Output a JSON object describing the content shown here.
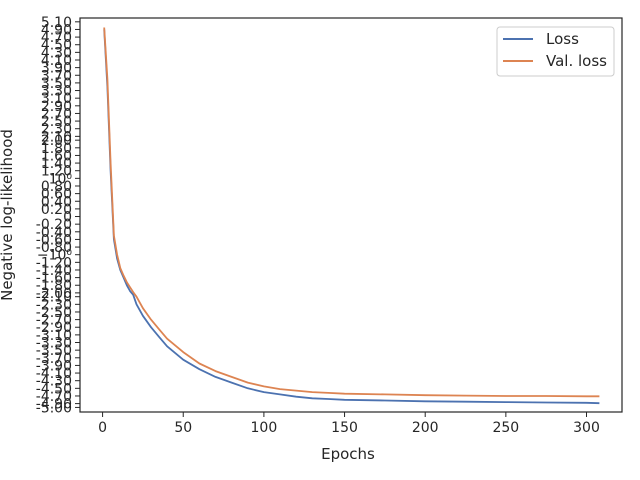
{
  "chart_data": {
    "type": "line",
    "title": "",
    "xlabel": "Epochs",
    "ylabel": "Negative log-likelihood",
    "xlim": [
      -14,
      322
    ],
    "xticks": [
      0,
      50,
      100,
      150,
      200,
      250,
      300
    ],
    "ylim": [
      -5.12,
      5.2
    ],
    "yscale": "symlog",
    "yticks": [
      {
        "v": 5.1,
        "label": "5.10"
      },
      {
        "v": 4.9,
        "label": "4.90"
      },
      {
        "v": 4.7,
        "label": "4.70"
      },
      {
        "v": 4.5,
        "label": "4.50"
      },
      {
        "v": 4.3,
        "label": "4.30"
      },
      {
        "v": 4.1,
        "label": "4.10"
      },
      {
        "v": 3.9,
        "label": "3.90"
      },
      {
        "v": 3.7,
        "label": "3.70"
      },
      {
        "v": 3.5,
        "label": "3.50"
      },
      {
        "v": 3.3,
        "label": "3.30"
      },
      {
        "v": 3.1,
        "label": "3.10"
      },
      {
        "v": 2.9,
        "label": "2.90"
      },
      {
        "v": 2.7,
        "label": "2.70"
      },
      {
        "v": 2.5,
        "label": "2.50"
      },
      {
        "v": 2.3,
        "label": "2.30"
      },
      {
        "v": 2.1,
        "label": "2.10"
      },
      {
        "v": 2.0,
        "label": "2.00"
      },
      {
        "v": 1.8,
        "label": "1.80"
      },
      {
        "v": 1.6,
        "label": "1.60"
      },
      {
        "v": 1.4,
        "label": "1.40"
      },
      {
        "v": 1.2,
        "label": "1.20"
      },
      {
        "v": 1.0,
        "label": "10⁰"
      },
      {
        "v": 0.8,
        "label": "0.80"
      },
      {
        "v": 0.6,
        "label": "0.60"
      },
      {
        "v": 0.4,
        "label": "0.40"
      },
      {
        "v": 0.2,
        "label": "0.20"
      },
      {
        "v": 0,
        "label": "0"
      },
      {
        "v": -0.2,
        "label": "-0.20"
      },
      {
        "v": -0.4,
        "label": "-0.40"
      },
      {
        "v": -0.6,
        "label": "-0.60"
      },
      {
        "v": -0.8,
        "label": "-0.80"
      },
      {
        "v": -1.0,
        "label": "−10⁰"
      },
      {
        "v": -1.2,
        "label": "-1.20"
      },
      {
        "v": -1.4,
        "label": "-1.40"
      },
      {
        "v": -1.6,
        "label": "-1.60"
      },
      {
        "v": -1.8,
        "label": "-1.80"
      },
      {
        "v": -2.0,
        "label": "-2.00"
      },
      {
        "v": -2.1,
        "label": "-2.10"
      },
      {
        "v": -2.3,
        "label": "-2.30"
      },
      {
        "v": -2.5,
        "label": "-2.50"
      },
      {
        "v": -2.7,
        "label": "-2.70"
      },
      {
        "v": -2.9,
        "label": "-2.90"
      },
      {
        "v": -3.1,
        "label": "-3.10"
      },
      {
        "v": -3.3,
        "label": "-3.30"
      },
      {
        "v": -3.5,
        "label": "-3.50"
      },
      {
        "v": -3.7,
        "label": "-3.70"
      },
      {
        "v": -3.9,
        "label": "-3.90"
      },
      {
        "v": -4.1,
        "label": "-4.10"
      },
      {
        "v": -4.3,
        "label": "-4.30"
      },
      {
        "v": -4.5,
        "label": "-4.50"
      },
      {
        "v": -4.7,
        "label": "-4.70"
      },
      {
        "v": -4.9,
        "label": "-4.90"
      },
      {
        "v": -5.0,
        "label": "-5.00"
      }
    ],
    "grid": false,
    "legend_position": "top-right",
    "series": [
      {
        "name": "Loss",
        "color": "#4c72b0",
        "x": [
          1,
          3,
          5,
          7,
          9,
          11,
          13,
          15,
          17,
          19,
          21,
          25,
          30,
          35,
          40,
          50,
          60,
          70,
          80,
          90,
          100,
          110,
          120,
          130,
          140,
          150,
          175,
          200,
          225,
          250,
          275,
          300,
          308
        ],
        "y": [
          4.9,
          3.4,
          1.2,
          -0.6,
          -1.1,
          -1.4,
          -1.6,
          -1.8,
          -1.95,
          -2.05,
          -2.3,
          -2.6,
          -2.9,
          -3.15,
          -3.4,
          -3.75,
          -4.0,
          -4.2,
          -4.35,
          -4.5,
          -4.6,
          -4.66,
          -4.72,
          -4.76,
          -4.78,
          -4.8,
          -4.82,
          -4.84,
          -4.85,
          -4.86,
          -4.87,
          -4.88,
          -4.89
        ]
      },
      {
        "name": "Val. loss",
        "color": "#dd8452",
        "x": [
          1,
          3,
          5,
          7,
          9,
          11,
          13,
          15,
          17,
          19,
          21,
          25,
          30,
          35,
          40,
          50,
          60,
          70,
          80,
          90,
          100,
          110,
          120,
          130,
          140,
          150,
          175,
          200,
          225,
          250,
          275,
          300,
          308
        ],
        "y": [
          4.95,
          3.6,
          1.4,
          -0.5,
          -1.0,
          -1.35,
          -1.55,
          -1.72,
          -1.85,
          -1.98,
          -2.1,
          -2.4,
          -2.7,
          -2.95,
          -3.2,
          -3.55,
          -3.85,
          -4.05,
          -4.2,
          -4.35,
          -4.45,
          -4.52,
          -4.56,
          -4.6,
          -4.62,
          -4.64,
          -4.66,
          -4.68,
          -4.69,
          -4.7,
          -4.7,
          -4.71,
          -4.71
        ]
      }
    ]
  }
}
